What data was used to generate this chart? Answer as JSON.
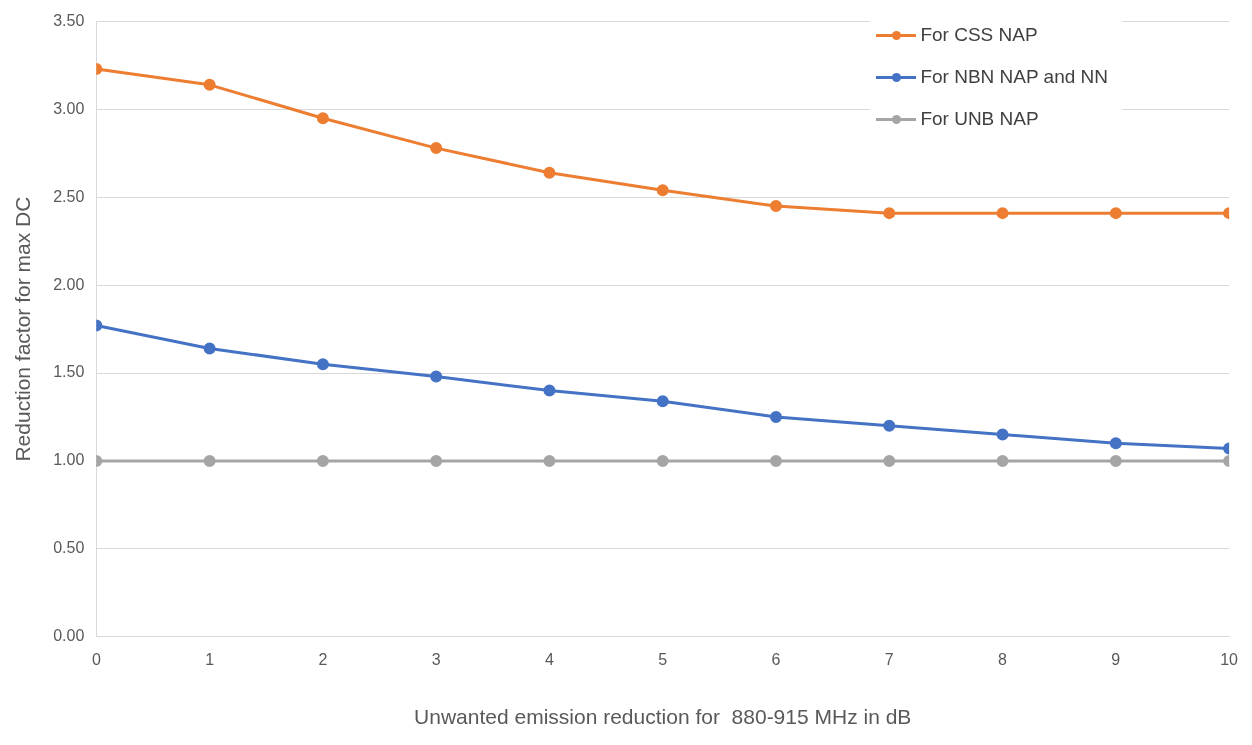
{
  "chart_data": {
    "type": "line",
    "xlabel": "Unwanted emission reduction for  880-915 MHz in dB",
    "ylabel": "Reduction factor for max DC",
    "x": [
      0,
      1,
      2,
      3,
      4,
      5,
      6,
      7,
      8,
      9,
      10
    ],
    "xlim": [
      0,
      10
    ],
    "xticks": [
      0,
      1,
      2,
      3,
      4,
      5,
      6,
      7,
      8,
      9,
      10
    ],
    "ylim": [
      0,
      3.5
    ],
    "yticks": [
      {
        "value": 0,
        "label": "0.00"
      },
      {
        "value": 0.5,
        "label": "0.50"
      },
      {
        "value": 1,
        "label": "1.00"
      },
      {
        "value": 1.5,
        "label": "1.50"
      },
      {
        "value": 2,
        "label": "2.00"
      },
      {
        "value": 2.5,
        "label": "2.50"
      },
      {
        "value": 3,
        "label": "3.00"
      },
      {
        "value": 3.5,
        "label": "3.50"
      }
    ],
    "grid": "y",
    "legend": "top right",
    "marker": "circle",
    "line_style": "solid",
    "series": [
      {
        "name": "For CSS NAP",
        "color": "#ed7d31",
        "values": [
          3.23,
          3.14,
          2.95,
          2.78,
          2.64,
          2.54,
          2.45,
          2.41,
          2.41,
          2.41,
          2.41
        ]
      },
      {
        "name": "For NBN NAP and NN",
        "color": "#4472c4",
        "values": [
          1.77,
          1.64,
          1.55,
          1.48,
          1.4,
          1.34,
          1.25,
          1.2,
          1.15,
          1.1,
          1.07
        ]
      },
      {
        "name": "For UNB NAP",
        "color": "#a5a5a5",
        "values": [
          1,
          1,
          1,
          1,
          1,
          1,
          1,
          1,
          1,
          1,
          1
        ]
      }
    ]
  }
}
